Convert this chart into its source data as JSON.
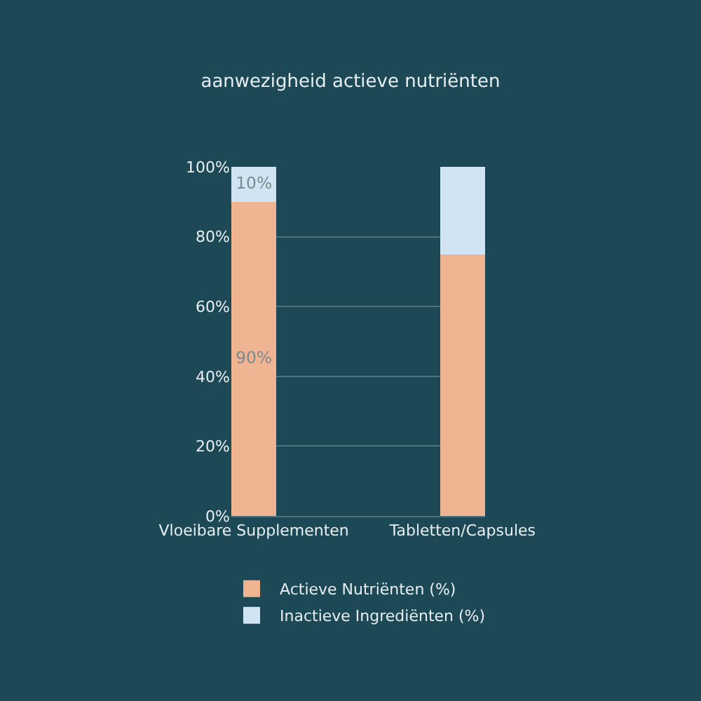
{
  "chart_data": {
    "type": "bar",
    "title": "aanwezigheid actieve nutriënten",
    "categories": [
      "Vloeibare Supplementen",
      "Tabletten/Capsules"
    ],
    "stacked": true,
    "series": [
      {
        "name": "Actieve Nutriënten (%)",
        "color": "#efb592",
        "values": [
          90,
          75
        ],
        "value_labels": [
          "90%",
          null
        ]
      },
      {
        "name": "Inactieve Ingrediënten (%)",
        "color": "#d0e4f4",
        "values": [
          10,
          25
        ],
        "value_labels": [
          "10%",
          null
        ]
      }
    ],
    "ylim": [
      0,
      100
    ],
    "yticks": [
      {
        "value": 0,
        "label": "0%"
      },
      {
        "value": 20,
        "label": "20%"
      },
      {
        "value": 40,
        "label": "40%"
      },
      {
        "value": 60,
        "label": "60%"
      },
      {
        "value": 80,
        "label": "80%"
      },
      {
        "value": 100,
        "label": "100%"
      }
    ],
    "grid": "y",
    "legend": "bottom"
  }
}
